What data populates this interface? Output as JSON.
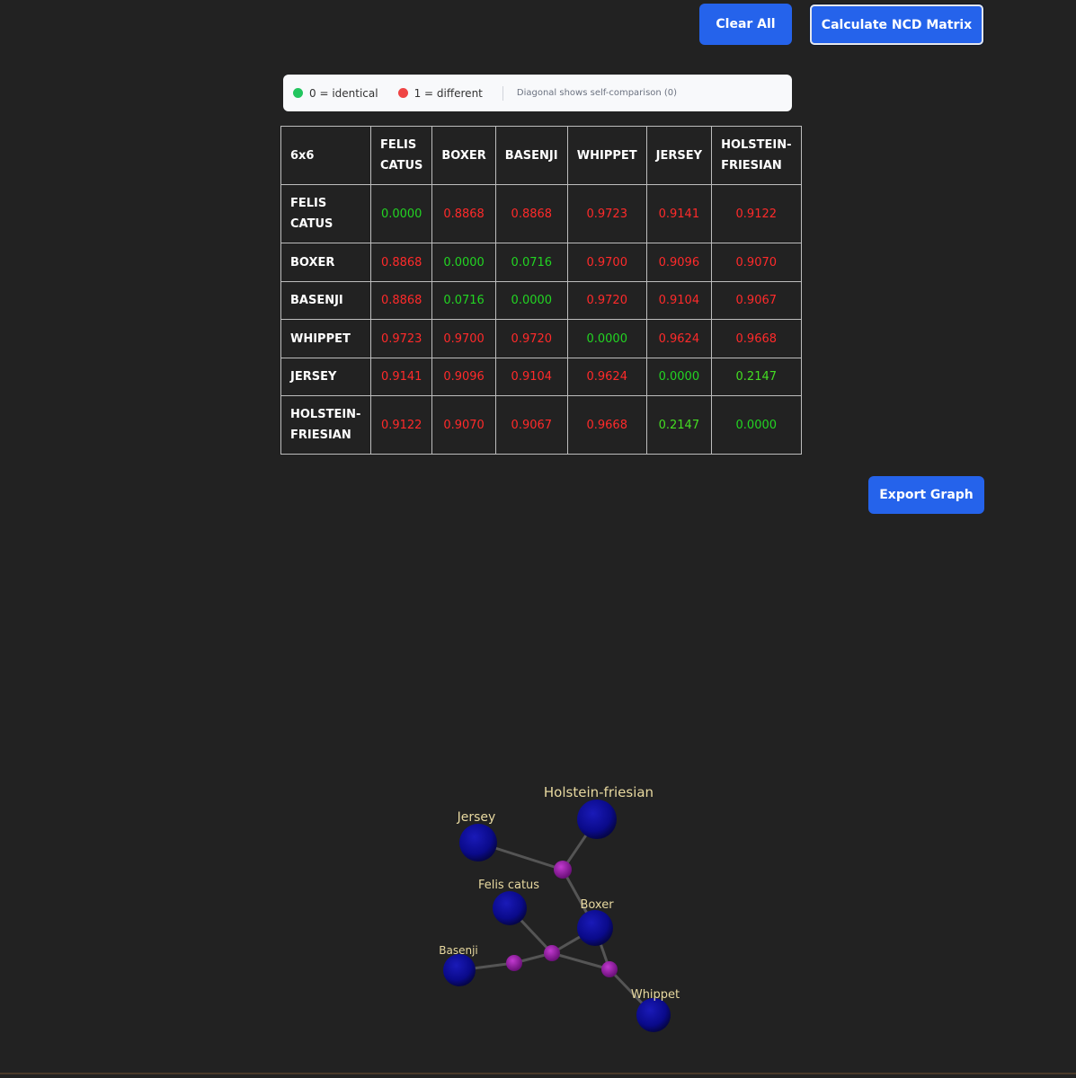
{
  "toolbar": {
    "clear_label": "Clear All",
    "calculate_label": "Calculate NCD Matrix",
    "export_label": "Export Graph"
  },
  "legend": {
    "identical_label": "0 = identical",
    "different_label": "1 = different",
    "note": "Diagonal shows self-comparison (0)",
    "identical_color": "#22c55e",
    "different_color": "#ef4444"
  },
  "matrix": {
    "corner": "6x6",
    "headers": [
      "FELIS CATUS",
      "BOXER",
      "BASENJI",
      "WHIPPET",
      "JERSEY",
      "HOLSTEIN-FRIESIAN"
    ],
    "rows": [
      {
        "label": "FELIS CATUS",
        "values": [
          "0.0000",
          "0.8868",
          "0.8868",
          "0.9723",
          "0.9141",
          "0.9122"
        ]
      },
      {
        "label": "BOXER",
        "values": [
          "0.8868",
          "0.0000",
          "0.0716",
          "0.9700",
          "0.9096",
          "0.9070"
        ]
      },
      {
        "label": "BASENJI",
        "values": [
          "0.8868",
          "0.0716",
          "0.0000",
          "0.9720",
          "0.9104",
          "0.9067"
        ]
      },
      {
        "label": "WHIPPET",
        "values": [
          "0.9723",
          "0.9700",
          "0.9720",
          "0.0000",
          "0.9624",
          "0.9668"
        ]
      },
      {
        "label": "JERSEY",
        "values": [
          "0.9141",
          "0.9096",
          "0.9104",
          "0.9624",
          "0.0000",
          "0.2147"
        ]
      },
      {
        "label": "HOLSTEIN-FRIESIAN",
        "values": [
          "0.9122",
          "0.9070",
          "0.9067",
          "0.9668",
          "0.2147",
          "0.0000"
        ]
      }
    ]
  },
  "graph": {
    "node_color": "#0a0a8a",
    "junction_color": "#9b1fa8",
    "label_color": "#e8d9a0",
    "nodes": [
      "Holstein-friesian",
      "Jersey",
      "Felis catus",
      "Boxer",
      "Basenji",
      "Whippet"
    ]
  }
}
